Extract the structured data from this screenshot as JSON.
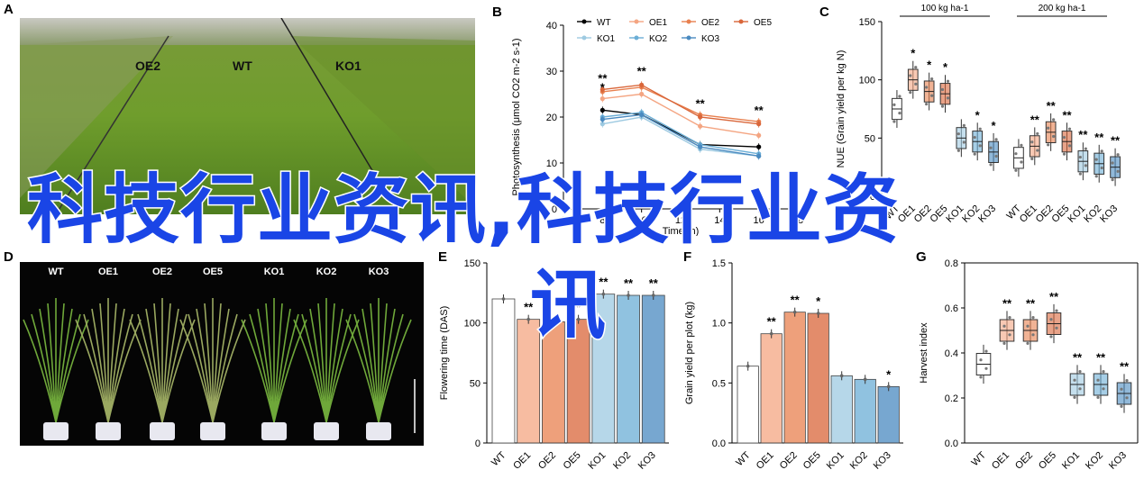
{
  "panels": {
    "A": {
      "label": "A",
      "field_labels": [
        "OE2",
        "WT",
        "KO1"
      ]
    },
    "D": {
      "label": "D",
      "plant_labels": [
        "WT",
        "OE1",
        "OE2",
        "OE5",
        "KO1",
        "KO2",
        "KO3"
      ]
    }
  },
  "watermark": {
    "line1": "科技行业资讯,科技行业资",
    "line2": "讯"
  },
  "colors": {
    "WT": "#000000",
    "OE1": "#f4a582",
    "OE2": "#e8804f",
    "OE5": "#d9663a",
    "KO1": "#9ecae1",
    "KO2": "#6baed6",
    "KO3": "#4a8ac0"
  },
  "chart_data": [
    {
      "panel": "B",
      "type": "line",
      "ylabel": "Photosynthesis (μmol CO2 m-2 s-1)",
      "xlabel": "Time (h)",
      "xlim": [
        6,
        18
      ],
      "ylim": [
        0,
        40
      ],
      "xticks": [
        "6",
        "8",
        "10",
        "12",
        "14",
        "16",
        "18"
      ],
      "yticks": [
        "0",
        "10",
        "20",
        "30",
        "40"
      ],
      "x": [
        8,
        10,
        13,
        16
      ],
      "series": [
        {
          "name": "WT",
          "values": [
            21.5,
            20.5,
            14,
            13.5
          ]
        },
        {
          "name": "OE1",
          "values": [
            24,
            25,
            18,
            16
          ]
        },
        {
          "name": "OE2",
          "values": [
            25.5,
            26.5,
            20.5,
            19
          ]
        },
        {
          "name": "OE5",
          "values": [
            26,
            27,
            20,
            18.5
          ]
        },
        {
          "name": "KO1",
          "values": [
            18.5,
            20,
            13,
            11.5
          ]
        },
        {
          "name": "KO2",
          "values": [
            20,
            21,
            14,
            12
          ]
        },
        {
          "name": "KO3",
          "values": [
            19.5,
            20.5,
            13.5,
            11.5
          ]
        }
      ],
      "annotations": [
        "**",
        "*",
        "**",
        "**",
        "**"
      ]
    },
    {
      "panel": "C",
      "type": "box",
      "ylabel": "NUE (Grain yield per kg N)",
      "ylim": [
        0,
        150
      ],
      "yticks": [
        "0",
        "50",
        "100",
        "150"
      ],
      "group_labels": [
        "100 kg ha-1",
        "200 kg ha-1"
      ],
      "categories": [
        "WT",
        "OE1",
        "OE2",
        "OE5",
        "KO1",
        "KO2",
        "KO3",
        "WT",
        "OE1",
        "OE2",
        "OE5",
        "KO1",
        "KO2",
        "KO3"
      ],
      "medians": [
        75,
        100,
        90,
        88,
        50,
        47,
        38,
        33,
        43,
        55,
        47,
        30,
        28,
        25
      ],
      "annotations": [
        "",
        "*",
        "*",
        "*",
        "",
        "*",
        "*",
        "",
        "**",
        "**",
        "**",
        "**",
        "**",
        "**"
      ]
    },
    {
      "panel": "E",
      "type": "bar",
      "ylabel": "Flowering time (DAS)",
      "ylim": [
        0,
        150
      ],
      "yticks": [
        "0",
        "50",
        "100",
        "150"
      ],
      "categories": [
        "WT",
        "OE1",
        "OE2",
        "OE5",
        "KO1",
        "KO2",
        "KO3"
      ],
      "values": [
        120,
        103,
        101,
        103,
        124,
        123,
        123
      ],
      "annotations": [
        "",
        "**",
        "",
        "*",
        "**",
        "**",
        "**"
      ]
    },
    {
      "panel": "F",
      "type": "bar",
      "ylabel": "Grain yield per plot (kg)",
      "ylim": [
        0,
        1.5
      ],
      "yticks": [
        "0.0",
        "0.5",
        "1.0",
        "1.5"
      ],
      "categories": [
        "WT",
        "OE1",
        "OE2",
        "OE5",
        "KO1",
        "KO2",
        "KO3"
      ],
      "values": [
        0.64,
        0.91,
        1.09,
        1.08,
        0.56,
        0.53,
        0.47
      ],
      "annotations": [
        "",
        "**",
        "**",
        "*",
        "",
        "",
        "*"
      ]
    },
    {
      "panel": "G",
      "type": "box",
      "ylabel": "Harvest index",
      "ylim": [
        0,
        0.8
      ],
      "yticks": [
        "0.0",
        "0.2",
        "0.4",
        "0.6",
        "0.8"
      ],
      "categories": [
        "WT",
        "OE1",
        "OE2",
        "OE5",
        "KO1",
        "KO2",
        "KO3"
      ],
      "medians": [
        0.35,
        0.5,
        0.5,
        0.53,
        0.26,
        0.26,
        0.22
      ],
      "annotations": [
        "",
        "**",
        "**",
        "**",
        "**",
        "**",
        "**"
      ]
    }
  ]
}
